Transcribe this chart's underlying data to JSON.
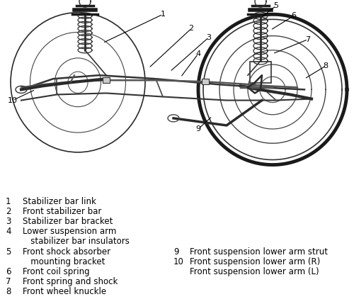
{
  "bg_color": "#ffffff",
  "left_legend": [
    [
      "1",
      "Stabilizer bar link"
    ],
    [
      "2",
      "Front stabilizer bar"
    ],
    [
      "3",
      "Stabilizer bar bracket"
    ],
    [
      "4",
      "Lower suspension arm"
    ],
    [
      "",
      "   stabilizer bar insulators"
    ],
    [
      "5",
      "Front shock absorber"
    ],
    [
      "",
      "   mounting bracket"
    ],
    [
      "6",
      "Front coil spring"
    ],
    [
      "7",
      "Front spring and shock"
    ],
    [
      "8",
      "Front wheel knuckle"
    ]
  ],
  "right_legend": [
    [
      "9",
      "Front suspension lower arm strut"
    ],
    [
      "10",
      "Front suspension lower arm (R)"
    ],
    [
      "",
      "Front suspension lower arm (L)"
    ]
  ],
  "font_size": 8.5,
  "fig_width": 5.0,
  "fig_height": 4.29,
  "dpi": 100
}
